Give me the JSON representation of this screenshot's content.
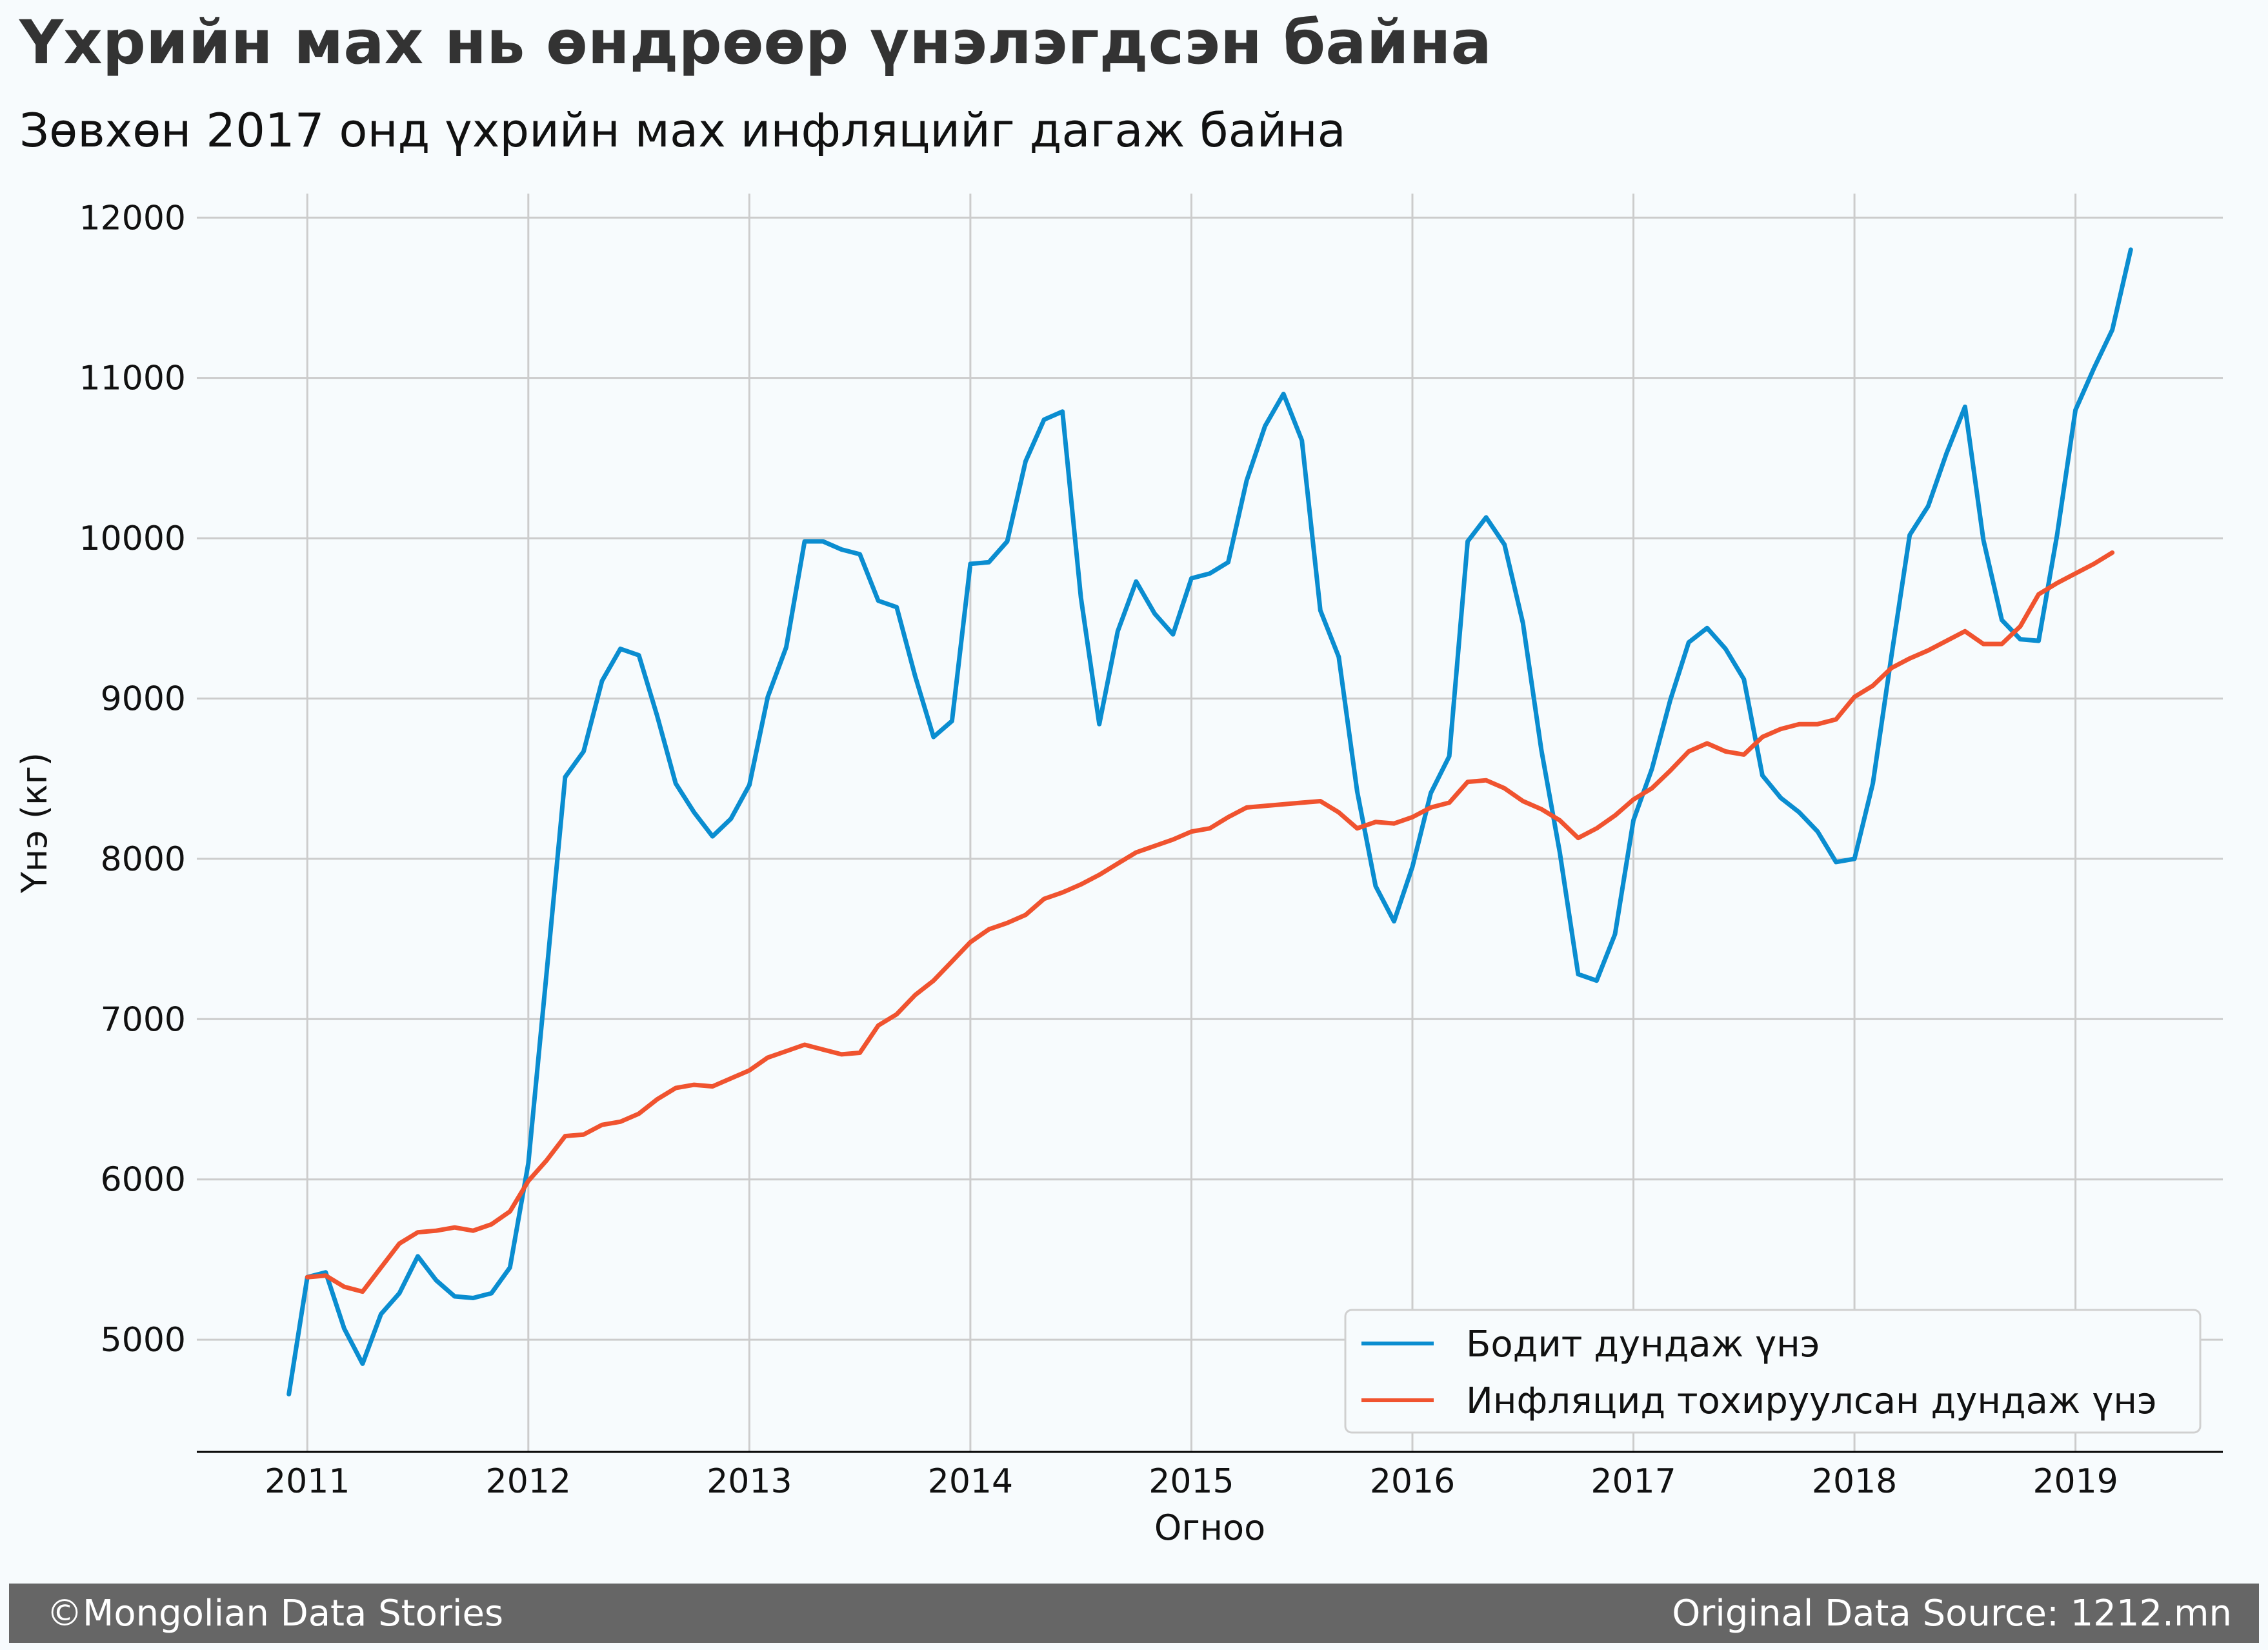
{
  "colors": {
    "background": "#f7fbfd",
    "actual_series": "#0a8dd0",
    "inflation_series": "#f0532f",
    "grid": "#cccccc",
    "footer_bg": "#666666"
  },
  "footer": {
    "left": "©Mongolian Data Stories",
    "right": "Original Data Source: 1212.mn"
  },
  "chart_data": {
    "type": "line",
    "title": "Үхрийн мах нь өндрөөр үнэлэгдсэн байна",
    "subtitle": "Зөвхөн 2017 онд үхрийн мах инфляцийг дагаж байна",
    "xlabel": "Огноо",
    "ylabel": "Үнэ (кг)",
    "x_ticks": [
      "2011",
      "2012",
      "2013",
      "2014",
      "2015",
      "2016",
      "2017",
      "2018",
      "2019"
    ],
    "y_ticks": [
      5000,
      6000,
      7000,
      8000,
      9000,
      10000,
      11000,
      12000
    ],
    "xlim": [
      "2010-07",
      "2019-09"
    ],
    "ylim": [
      4300,
      12150
    ],
    "grid": true,
    "legend_position": "bottom-right",
    "series": [
      {
        "name": "Бодит дундаж үнэ",
        "color": "#0a8dd0",
        "points": [
          [
            "2010-12",
            4660
          ],
          [
            "2011-01",
            5390
          ],
          [
            "2011-02",
            5420
          ],
          [
            "2011-03",
            5070
          ],
          [
            "2011-04",
            4850
          ],
          [
            "2011-05",
            5160
          ],
          [
            "2011-06",
            5290
          ],
          [
            "2011-07",
            5520
          ],
          [
            "2011-08",
            5370
          ],
          [
            "2011-09",
            5270
          ],
          [
            "2011-10",
            5260
          ],
          [
            "2011-11",
            5290
          ],
          [
            "2011-12",
            5450
          ],
          [
            "2012-01",
            6100
          ],
          [
            "2012-02",
            7300
          ],
          [
            "2012-03",
            8510
          ],
          [
            "2012-04",
            8670
          ],
          [
            "2012-05",
            9110
          ],
          [
            "2012-06",
            9310
          ],
          [
            "2012-07",
            9270
          ],
          [
            "2012-08",
            8890
          ],
          [
            "2012-09",
            8470
          ],
          [
            "2012-10",
            8290
          ],
          [
            "2012-11",
            8140
          ],
          [
            "2012-12",
            8250
          ],
          [
            "2013-01",
            8460
          ],
          [
            "2013-02",
            9010
          ],
          [
            "2013-03",
            9320
          ],
          [
            "2013-04",
            9980
          ],
          [
            "2013-05",
            9980
          ],
          [
            "2013-06",
            9930
          ],
          [
            "2013-07",
            9900
          ],
          [
            "2013-08",
            9610
          ],
          [
            "2013-09",
            9570
          ],
          [
            "2013-10",
            9140
          ],
          [
            "2013-11",
            8760
          ],
          [
            "2013-12",
            8860
          ],
          [
            "2014-01",
            9840
          ],
          [
            "2014-02",
            9850
          ],
          [
            "2014-03",
            9980
          ],
          [
            "2014-04",
            10480
          ],
          [
            "2014-05",
            10740
          ],
          [
            "2014-06",
            10790
          ],
          [
            "2014-07",
            9630
          ],
          [
            "2014-08",
            8840
          ],
          [
            "2014-09",
            9420
          ],
          [
            "2014-10",
            9730
          ],
          [
            "2014-11",
            9530
          ],
          [
            "2014-12",
            9400
          ],
          [
            "2015-01",
            9750
          ],
          [
            "2015-02",
            9780
          ],
          [
            "2015-03",
            9850
          ],
          [
            "2015-04",
            10360
          ],
          [
            "2015-05",
            10700
          ],
          [
            "2015-06",
            10900
          ],
          [
            "2015-07",
            10610
          ],
          [
            "2015-08",
            9550
          ],
          [
            "2015-09",
            9260
          ],
          [
            "2015-10",
            8420
          ],
          [
            "2015-11",
            7830
          ],
          [
            "2015-12",
            7610
          ],
          [
            "2016-01",
            7950
          ],
          [
            "2016-02",
            8410
          ],
          [
            "2016-03",
            8640
          ],
          [
            "2016-04",
            9980
          ],
          [
            "2016-05",
            10130
          ],
          [
            "2016-06",
            9960
          ],
          [
            "2016-07",
            9470
          ],
          [
            "2016-08",
            8680
          ],
          [
            "2016-09",
            8040
          ],
          [
            "2016-10",
            7280
          ],
          [
            "2016-11",
            7240
          ],
          [
            "2016-12",
            7530
          ],
          [
            "2017-01",
            8240
          ],
          [
            "2017-02",
            8560
          ],
          [
            "2017-03",
            8990
          ],
          [
            "2017-04",
            9350
          ],
          [
            "2017-05",
            9440
          ],
          [
            "2017-06",
            9310
          ],
          [
            "2017-07",
            9120
          ],
          [
            "2017-08",
            8520
          ],
          [
            "2017-09",
            8380
          ],
          [
            "2017-10",
            8290
          ],
          [
            "2017-11",
            8170
          ],
          [
            "2017-12",
            7980
          ],
          [
            "2018-01",
            8000
          ],
          [
            "2018-02",
            8470
          ],
          [
            "2018-03",
            9260
          ],
          [
            "2018-04",
            10020
          ],
          [
            "2018-05",
            10200
          ],
          [
            "2018-06",
            10530
          ],
          [
            "2018-07",
            10820
          ],
          [
            "2018-08",
            9990
          ],
          [
            "2018-09",
            9490
          ],
          [
            "2018-10",
            9370
          ],
          [
            "2018-11",
            9360
          ],
          [
            "2018-12",
            10020
          ],
          [
            "2019-01",
            10800
          ],
          [
            "2019-02",
            11060
          ],
          [
            "2019-03",
            11300
          ],
          [
            "2019-04",
            11800
          ]
        ]
      },
      {
        "name": "Инфляцид тохируулсан дундаж үнэ",
        "color": "#f0532f",
        "points": [
          [
            "2011-01",
            5390
          ],
          [
            "2011-02",
            5400
          ],
          [
            "2011-03",
            5330
          ],
          [
            "2011-04",
            5300
          ],
          [
            "2011-05",
            5450
          ],
          [
            "2011-06",
            5600
          ],
          [
            "2011-07",
            5670
          ],
          [
            "2011-08",
            5680
          ],
          [
            "2011-09",
            5700
          ],
          [
            "2011-10",
            5680
          ],
          [
            "2011-11",
            5720
          ],
          [
            "2011-12",
            5800
          ],
          [
            "2012-01",
            5990
          ],
          [
            "2012-02",
            6120
          ],
          [
            "2012-03",
            6270
          ],
          [
            "2012-04",
            6280
          ],
          [
            "2012-05",
            6340
          ],
          [
            "2012-06",
            6360
          ],
          [
            "2012-07",
            6410
          ],
          [
            "2012-08",
            6500
          ],
          [
            "2012-09",
            6570
          ],
          [
            "2012-10",
            6590
          ],
          [
            "2012-11",
            6580
          ],
          [
            "2012-12",
            6630
          ],
          [
            "2013-01",
            6680
          ],
          [
            "2013-02",
            6760
          ],
          [
            "2013-03",
            6800
          ],
          [
            "2013-04",
            6840
          ],
          [
            "2013-05",
            6810
          ],
          [
            "2013-06",
            6780
          ],
          [
            "2013-07",
            6790
          ],
          [
            "2013-08",
            6960
          ],
          [
            "2013-09",
            7030
          ],
          [
            "2013-10",
            7150
          ],
          [
            "2013-11",
            7240
          ],
          [
            "2013-12",
            7360
          ],
          [
            "2014-01",
            7480
          ],
          [
            "2014-02",
            7560
          ],
          [
            "2014-03",
            7600
          ],
          [
            "2014-04",
            7650
          ],
          [
            "2014-05",
            7750
          ],
          [
            "2014-06",
            7790
          ],
          [
            "2014-07",
            7840
          ],
          [
            "2014-08",
            7900
          ],
          [
            "2014-09",
            7970
          ],
          [
            "2014-10",
            8040
          ],
          [
            "2014-11",
            8080
          ],
          [
            "2014-12",
            8120
          ],
          [
            "2015-01",
            8170
          ],
          [
            "2015-02",
            8190
          ],
          [
            "2015-03",
            8260
          ],
          [
            "2015-04",
            8320
          ],
          [
            "2015-05",
            8330
          ],
          [
            "2015-06",
            8340
          ],
          [
            "2015-07",
            8350
          ],
          [
            "2015-08",
            8360
          ],
          [
            "2015-09",
            8290
          ],
          [
            "2015-10",
            8190
          ],
          [
            "2015-11",
            8230
          ],
          [
            "2015-12",
            8220
          ],
          [
            "2016-01",
            8260
          ],
          [
            "2016-02",
            8320
          ],
          [
            "2016-03",
            8350
          ],
          [
            "2016-04",
            8480
          ],
          [
            "2016-05",
            8490
          ],
          [
            "2016-06",
            8440
          ],
          [
            "2016-07",
            8360
          ],
          [
            "2016-08",
            8310
          ],
          [
            "2016-09",
            8240
          ],
          [
            "2016-10",
            8130
          ],
          [
            "2016-11",
            8190
          ],
          [
            "2016-12",
            8270
          ],
          [
            "2017-01",
            8370
          ],
          [
            "2017-02",
            8440
          ],
          [
            "2017-03",
            8550
          ],
          [
            "2017-04",
            8670
          ],
          [
            "2017-05",
            8720
          ],
          [
            "2017-06",
            8670
          ],
          [
            "2017-07",
            8650
          ],
          [
            "2017-08",
            8760
          ],
          [
            "2017-09",
            8810
          ],
          [
            "2017-10",
            8840
          ],
          [
            "2017-11",
            8840
          ],
          [
            "2017-12",
            8870
          ],
          [
            "2018-01",
            9010
          ],
          [
            "2018-02",
            9080
          ],
          [
            "2018-03",
            9190
          ],
          [
            "2018-04",
            9250
          ],
          [
            "2018-05",
            9300
          ],
          [
            "2018-06",
            9360
          ],
          [
            "2018-07",
            9420
          ],
          [
            "2018-08",
            9340
          ],
          [
            "2018-09",
            9340
          ],
          [
            "2018-10",
            9450
          ],
          [
            "2018-11",
            9650
          ],
          [
            "2018-12",
            9720
          ],
          [
            "2019-01",
            9780
          ],
          [
            "2019-02",
            9840
          ],
          [
            "2019-03",
            9910
          ]
        ]
      }
    ]
  }
}
